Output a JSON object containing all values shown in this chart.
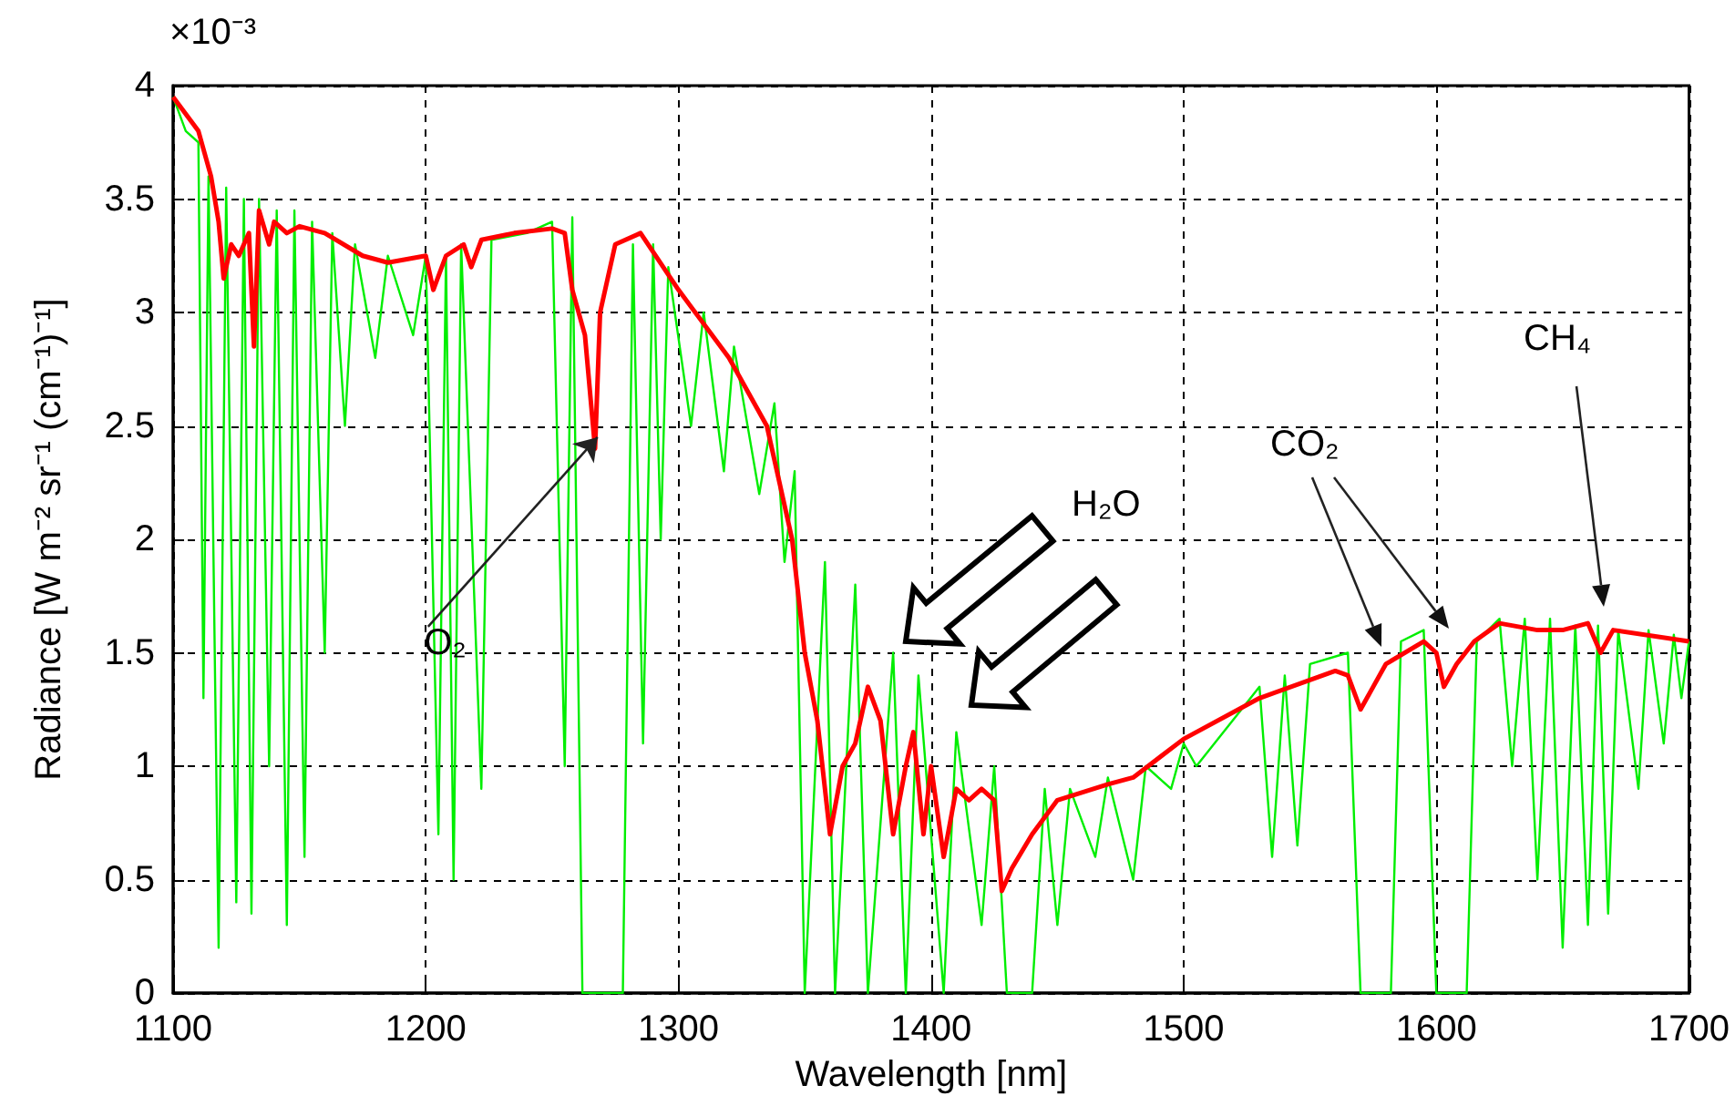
{
  "chart_data": {
    "type": "line",
    "xlabel": "Wavelength [nm]",
    "ylabel": "Radiance [W m⁻² sr⁻¹ (cm⁻¹)⁻¹]",
    "annotations": [
      "×10⁻³",
      {
        "text": "O₂",
        "x": 1268,
        "y": 2.45
      },
      "H₂O",
      "CO₂",
      "CH₄"
    ],
    "xlim": [
      1100,
      1700
    ],
    "xticks": [
      1100,
      1200,
      1300,
      1400,
      1500,
      1600,
      1700
    ],
    "ylim": [
      0,
      4
    ],
    "yticks": [
      0,
      0.5,
      1,
      1.5,
      2,
      2.5,
      3,
      3.5,
      4
    ],
    "grid": true,
    "marker": "none",
    "line_style": "solid",
    "series": [
      {
        "color": "#00ee00",
        "x": [
          1100,
          1105,
          1110,
          1112,
          1114,
          1118,
          1121,
          1125,
          1128,
          1131,
          1134,
          1138,
          1141,
          1145,
          1148,
          1152,
          1155,
          1160,
          1163,
          1168,
          1172,
          1180,
          1185,
          1195,
          1200,
          1205,
          1208,
          1211,
          1214,
          1222,
          1226,
          1240,
          1250,
          1255,
          1258,
          1262,
          1278,
          1282,
          1286,
          1290,
          1293,
          1296,
          1305,
          1310,
          1318,
          1322,
          1332,
          1338,
          1342,
          1346,
          1350,
          1358,
          1362,
          1370,
          1375,
          1385,
          1390,
          1395,
          1405,
          1410,
          1420,
          1425,
          1430,
          1440,
          1445,
          1450,
          1455,
          1465,
          1470,
          1480,
          1485,
          1495,
          1500,
          1505,
          1530,
          1535,
          1540,
          1545,
          1550,
          1565,
          1570,
          1582,
          1586,
          1595,
          1600,
          1612,
          1616,
          1625,
          1630,
          1635,
          1640,
          1645,
          1650,
          1655,
          1660,
          1664,
          1668,
          1672,
          1680,
          1684,
          1690,
          1694,
          1697,
          1700
        ],
        "values": [
          3.95,
          3.8,
          3.75,
          1.3,
          3.6,
          0.2,
          3.55,
          0.4,
          3.5,
          0.35,
          3.5,
          1.0,
          3.45,
          0.3,
          3.45,
          0.6,
          3.4,
          1.5,
          3.35,
          2.5,
          3.3,
          2.8,
          3.25,
          2.9,
          3.25,
          0.7,
          3.25,
          0.5,
          3.3,
          0.9,
          3.32,
          3.35,
          3.4,
          1.0,
          3.42,
          0,
          0,
          3.3,
          1.1,
          3.3,
          2.0,
          3.2,
          2.5,
          3.0,
          2.3,
          2.85,
          2.2,
          2.6,
          1.9,
          2.3,
          0,
          1.9,
          0,
          1.8,
          0,
          1.5,
          0,
          1.4,
          0,
          1.15,
          0.3,
          1.0,
          0,
          0,
          0.9,
          0.3,
          0.9,
          0.6,
          0.95,
          0.5,
          1.0,
          0.9,
          1.1,
          1.0,
          1.35,
          0.6,
          1.4,
          0.65,
          1.45,
          1.5,
          0,
          0,
          1.55,
          1.6,
          0,
          0,
          1.55,
          1.65,
          1.0,
          1.65,
          0.5,
          1.65,
          0.2,
          1.62,
          0.3,
          1.62,
          0.35,
          1.6,
          0.9,
          1.6,
          1.1,
          1.58,
          1.3,
          1.55
        ]
      },
      {
        "color": "#ff0000",
        "x": [
          1100,
          1110,
          1115,
          1118,
          1120,
          1123,
          1126,
          1130,
          1132,
          1134,
          1138,
          1140,
          1145,
          1150,
          1160,
          1175,
          1185,
          1200,
          1203,
          1208,
          1215,
          1218,
          1222,
          1235,
          1250,
          1255,
          1258,
          1263,
          1267,
          1269,
          1275,
          1285,
          1300,
          1320,
          1335,
          1345,
          1350,
          1355,
          1360,
          1365,
          1370,
          1375,
          1380,
          1385,
          1390,
          1393,
          1397,
          1400,
          1405,
          1410,
          1415,
          1420,
          1425,
          1428,
          1432,
          1440,
          1450,
          1470,
          1480,
          1500,
          1530,
          1560,
          1565,
          1570,
          1575,
          1580,
          1595,
          1600,
          1603,
          1608,
          1615,
          1625,
          1640,
          1650,
          1660,
          1665,
          1670,
          1700
        ],
        "values": [
          3.95,
          3.8,
          3.6,
          3.4,
          3.15,
          3.3,
          3.25,
          3.35,
          2.85,
          3.45,
          3.3,
          3.4,
          3.35,
          3.38,
          3.35,
          3.25,
          3.22,
          3.25,
          3.1,
          3.25,
          3.3,
          3.2,
          3.32,
          3.35,
          3.37,
          3.35,
          3.1,
          2.9,
          2.4,
          3.0,
          3.3,
          3.35,
          3.1,
          2.8,
          2.5,
          2.0,
          1.5,
          1.2,
          0.7,
          1.0,
          1.1,
          1.35,
          1.2,
          0.7,
          1.0,
          1.15,
          0.7,
          1.0,
          0.6,
          0.9,
          0.85,
          0.9,
          0.85,
          0.45,
          0.55,
          0.7,
          0.85,
          0.92,
          0.95,
          1.12,
          1.3,
          1.42,
          1.4,
          1.25,
          1.35,
          1.45,
          1.55,
          1.5,
          1.35,
          1.45,
          1.55,
          1.63,
          1.6,
          1.6,
          1.63,
          1.5,
          1.6,
          1.55
        ]
      }
    ]
  }
}
